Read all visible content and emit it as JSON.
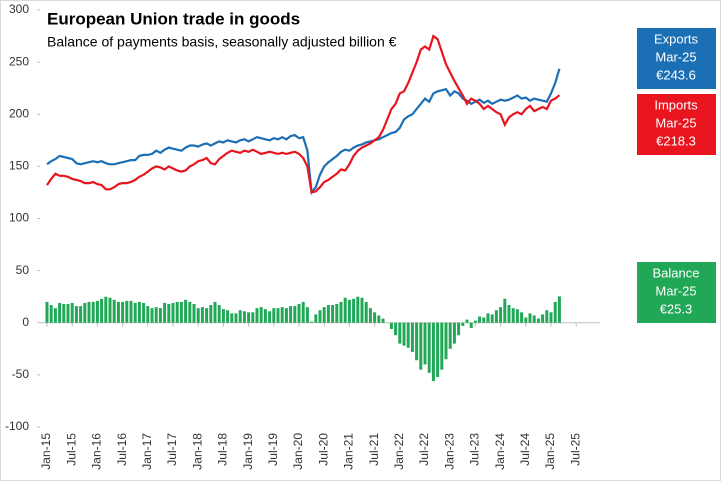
{
  "chart_data": {
    "type": "line",
    "title": "European Union trade in goods",
    "subtitle": "Balance of payments basis, seasonally adjusted billion €",
    "categories": [
      "Jan-15",
      null,
      null,
      null,
      null,
      null,
      "Jul-15",
      null,
      null,
      null,
      null,
      null,
      "Jan-16",
      null,
      null,
      null,
      null,
      null,
      "Jul-16",
      null,
      null,
      null,
      null,
      null,
      "Jan-17",
      null,
      null,
      null,
      null,
      null,
      "Jul-17",
      null,
      null,
      null,
      null,
      null,
      "Jan-18",
      null,
      null,
      null,
      null,
      null,
      "Jul-18",
      null,
      null,
      null,
      null,
      null,
      "Jan-19",
      null,
      null,
      null,
      null,
      null,
      "Jul-19",
      null,
      null,
      null,
      null,
      null,
      "Jan-20",
      null,
      null,
      null,
      null,
      null,
      "Jul-20",
      null,
      null,
      null,
      null,
      null,
      "Jan-21",
      null,
      null,
      null,
      null,
      null,
      "Jul-21",
      null,
      null,
      null,
      null,
      null,
      "Jan-22",
      null,
      null,
      null,
      null,
      null,
      "Jul-22",
      null,
      null,
      null,
      null,
      null,
      "Jan-23",
      null,
      null,
      null,
      null,
      null,
      "Jul-23",
      null,
      null,
      null,
      null,
      null,
      "Jan-24",
      null,
      null,
      null,
      null,
      null,
      "Jul-24",
      null,
      null,
      null,
      null,
      null,
      "Jan-25",
      null,
      null,
      null,
      null,
      null,
      "Jul-25",
      null,
      null,
      null,
      null,
      null
    ],
    "series": [
      {
        "name": "Exports",
        "color": "#1a6fb5",
        "kind": "line",
        "callout_date": "Mar-25",
        "callout_value": "€243.6",
        "values": [
          152,
          155,
          157,
          160,
          159,
          158,
          157,
          153,
          152,
          153,
          154,
          155,
          154,
          155,
          153,
          152,
          152,
          153,
          154,
          155,
          156,
          156,
          160,
          161,
          161,
          162,
          165,
          163,
          166,
          168,
          167,
          166,
          165,
          168,
          170,
          170,
          169,
          171,
          172,
          170,
          172,
          174,
          173,
          175,
          174,
          173,
          175,
          176,
          174,
          176,
          178,
          177,
          176,
          175,
          177,
          176,
          178,
          176,
          179,
          180,
          177,
          178,
          165,
          125,
          130,
          142,
          150,
          154,
          157,
          160,
          164,
          166,
          165,
          168,
          170,
          171,
          173,
          174,
          175,
          176,
          178,
          180,
          182,
          183,
          187,
          195,
          198,
          200,
          205,
          210,
          215,
          212,
          220,
          222,
          223,
          224,
          218,
          222,
          220,
          215,
          213,
          210,
          212,
          214,
          211,
          213,
          210,
          212,
          214,
          213,
          214,
          216,
          218,
          215,
          216,
          213,
          215,
          214,
          213,
          212,
          220,
          230,
          243.6,
          null,
          null,
          null,
          null,
          null,
          null,
          null,
          null,
          null
        ]
      },
      {
        "name": "Imports",
        "color": "#e8141e",
        "kind": "line",
        "callout_date": "Mar-25",
        "callout_value": "€218.3",
        "values": [
          132,
          138,
          143,
          141,
          141,
          140,
          138,
          137,
          136,
          134,
          134,
          135,
          133,
          132,
          128,
          128,
          130,
          133,
          134,
          134,
          135,
          137,
          140,
          142,
          145,
          148,
          150,
          149,
          147,
          150,
          148,
          146,
          145,
          146,
          150,
          152,
          155,
          156,
          158,
          153,
          152,
          157,
          160,
          163,
          165,
          164,
          163,
          165,
          164,
          166,
          164,
          162,
          163,
          164,
          163,
          162,
          163,
          162,
          163,
          164,
          162,
          158,
          150,
          125,
          126,
          130,
          135,
          137,
          140,
          143,
          147,
          146,
          152,
          160,
          165,
          168,
          170,
          172,
          175,
          178,
          185,
          195,
          205,
          210,
          220,
          222,
          230,
          240,
          250,
          262,
          265,
          262,
          275,
          272,
          260,
          248,
          240,
          232,
          225,
          218,
          210,
          215,
          213,
          210,
          205,
          208,
          205,
          202,
          200,
          190,
          197,
          200,
          202,
          200,
          205,
          208,
          203,
          205,
          207,
          205,
          213,
          215,
          218.3,
          null,
          null,
          null,
          null,
          null,
          null,
          null,
          null,
          null
        ]
      },
      {
        "name": "Balance",
        "color": "#21a857",
        "kind": "bar",
        "callout_date": "Mar-25",
        "callout_value": "€25.3",
        "values": [
          20,
          17,
          14,
          19,
          18,
          18,
          19,
          16,
          16,
          19,
          20,
          20,
          21,
          23,
          25,
          24,
          22,
          20,
          20,
          21,
          21,
          19,
          20,
          19,
          16,
          14,
          15,
          14,
          19,
          18,
          19,
          20,
          20,
          22,
          20,
          18,
          14,
          15,
          14,
          17,
          20,
          17,
          13,
          12,
          9,
          9,
          12,
          11,
          10,
          10,
          14,
          15,
          13,
          11,
          14,
          14,
          15,
          14,
          16,
          16,
          18,
          20,
          15,
          1,
          8,
          12,
          15,
          17,
          17,
          18,
          20,
          24,
          22,
          23,
          25,
          24,
          20,
          14,
          10,
          7,
          4,
          0,
          -6,
          -12,
          -20,
          -22,
          -24,
          -28,
          -36,
          -45,
          -40,
          -48,
          -56,
          -52,
          -45,
          -35,
          -25,
          -20,
          -12,
          -3,
          3,
          -5,
          2,
          6,
          5,
          9,
          8,
          12,
          15,
          23,
          17,
          14,
          13,
          10,
          5,
          9,
          7,
          4,
          8,
          12,
          10,
          20,
          25.3,
          null,
          null,
          null,
          null,
          null,
          null,
          null,
          null,
          null
        ]
      }
    ],
    "ylim": [
      -100,
      300
    ],
    "yticks": [
      -100,
      -50,
      0,
      50,
      100,
      150,
      200,
      250,
      300
    ]
  }
}
